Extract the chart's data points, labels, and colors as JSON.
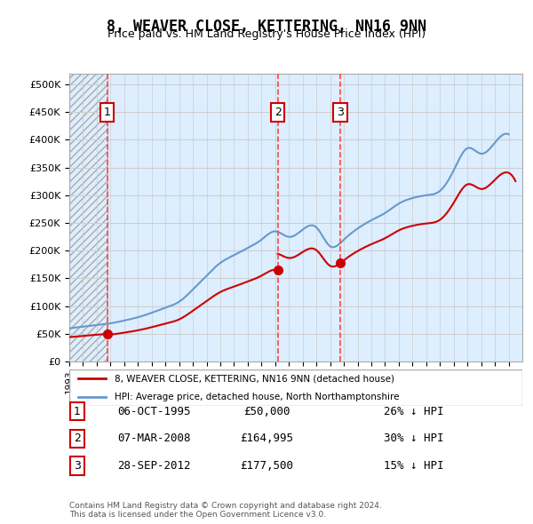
{
  "title": "8, WEAVER CLOSE, KETTERING, NN16 9NN",
  "subtitle": "Price paid vs. HM Land Registry's House Price Index (HPI)",
  "ylabel_ticks": [
    "£0",
    "£50K",
    "£100K",
    "£150K",
    "£200K",
    "£250K",
    "£300K",
    "£350K",
    "£400K",
    "£450K",
    "£500K"
  ],
  "ytick_values": [
    0,
    50000,
    100000,
    150000,
    200000,
    250000,
    300000,
    350000,
    400000,
    450000,
    500000
  ],
  "ylim": [
    0,
    520000
  ],
  "xlim_start": 1993,
  "xlim_end": 2026,
  "sales": [
    {
      "year": 1995.76,
      "price": 50000,
      "label": "1"
    },
    {
      "year": 2008.18,
      "price": 164995,
      "label": "2"
    },
    {
      "year": 2012.74,
      "price": 177500,
      "label": "3"
    }
  ],
  "sale_color": "#cc0000",
  "hpi_color": "#6699cc",
  "vline_color": "#ff4444",
  "hatch_color": "#cccccc",
  "grid_color": "#cccccc",
  "background_color": "#ddeeff",
  "plot_bg_color": "#ffffff",
  "legend_entries": [
    "8, WEAVER CLOSE, KETTERING, NN16 9NN (detached house)",
    "HPI: Average price, detached house, North Northamptonshire"
  ],
  "table_rows": [
    {
      "num": "1",
      "date": "06-OCT-1995",
      "price": "£50,000",
      "hpi": "26% ↓ HPI"
    },
    {
      "num": "2",
      "date": "07-MAR-2008",
      "price": "£164,995",
      "hpi": "30% ↓ HPI"
    },
    {
      "num": "3",
      "date": "28-SEP-2012",
      "price": "£177,500",
      "hpi": "15% ↓ HPI"
    }
  ],
  "footnote": "Contains HM Land Registry data © Crown copyright and database right 2024.\nThis data is licensed under the Open Government Licence v3.0.",
  "hpi_data_years": [
    1993,
    1994,
    1995,
    1996,
    1997,
    1998,
    1999,
    2000,
    2001,
    2002,
    2003,
    2004,
    2005,
    2006,
    2007,
    2008,
    2009,
    2010,
    2011,
    2012,
    2013,
    2014,
    2015,
    2016,
    2017,
    2018,
    2019,
    2020,
    2021,
    2022,
    2023,
    2024,
    2025
  ],
  "hpi_data_values": [
    60000,
    63000,
    66000,
    69000,
    74000,
    80000,
    88000,
    97000,
    108000,
    130000,
    155000,
    178000,
    192000,
    205000,
    220000,
    235000,
    225000,
    238000,
    242000,
    208000,
    220000,
    240000,
    255000,
    268000,
    285000,
    295000,
    300000,
    308000,
    345000,
    385000,
    375000,
    395000,
    410000
  ]
}
